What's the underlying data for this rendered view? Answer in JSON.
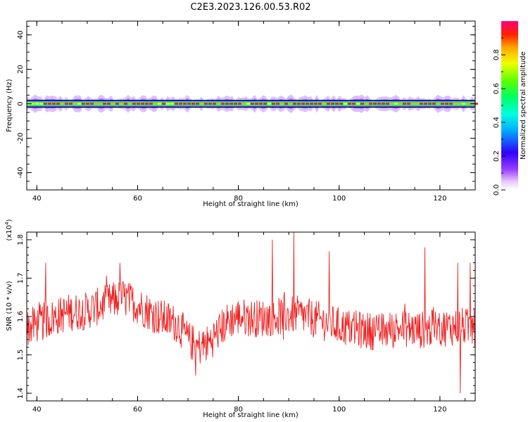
{
  "title": "C2E3.2023.126.00.53.R02",
  "chart_data": [
    {
      "type": "heatmap",
      "title": "",
      "xlabel": "Height of straight line (km)",
      "ylabel": "Frequency (Hz)",
      "xlim": [
        38,
        127
      ],
      "ylim": [
        -50,
        48
      ],
      "xticks": [
        "40",
        "60",
        "80",
        "100",
        "120"
      ],
      "xtick_values": [
        40,
        60,
        80,
        100,
        120
      ],
      "yticks": [
        "40",
        "20",
        "0",
        "-20",
        "-40"
      ],
      "ytick_values": [
        40,
        20,
        0,
        -20,
        -40
      ],
      "colorbar": {
        "label": "Normalized spectral amplitude",
        "range": [
          0,
          1
        ],
        "ticks": [
          "0.0",
          "0.2",
          "0.4",
          "0.6",
          "0.8"
        ],
        "tick_values": [
          0.0,
          0.2,
          0.4,
          0.6,
          0.8
        ],
        "colormap": "rainbow (white-violet-blue-cyan-green-yellow-red-magenta)"
      },
      "band": {
        "center_hz": 0,
        "core_halfwidth_hz": 1.2,
        "halo_halfwidth_hz": 4,
        "peak_amplitude": 0.85
      }
    },
    {
      "type": "line",
      "title": "",
      "xlabel": "Height of straight line (km)",
      "ylabel": "SNR (10 * v/v)",
      "scale_label": "(x10",
      "scale_exponent": "4",
      "scale_suffix": ")",
      "xlim": [
        38,
        127
      ],
      "ylim": [
        1.38,
        1.82
      ],
      "xticks": [
        "40",
        "60",
        "80",
        "100",
        "120"
      ],
      "xtick_values": [
        40,
        60,
        80,
        100,
        120
      ],
      "yticks": [
        "1.8",
        "1.7",
        "1.6",
        "1.5",
        "1.4"
      ],
      "ytick_values": [
        1.8,
        1.7,
        1.6,
        1.5,
        1.4
      ],
      "line_color": "#ee2222",
      "trend_x": [
        38,
        42,
        46,
        50,
        54,
        57,
        60,
        64,
        68,
        70,
        72,
        74,
        76,
        78,
        80,
        84,
        88,
        92,
        96,
        100,
        104,
        108,
        112,
        116,
        120,
        124,
        127
      ],
      "trend_y": [
        1.57,
        1.59,
        1.61,
        1.615,
        1.635,
        1.65,
        1.63,
        1.6,
        1.58,
        1.54,
        1.52,
        1.53,
        1.56,
        1.59,
        1.6,
        1.595,
        1.6,
        1.605,
        1.59,
        1.575,
        1.565,
        1.56,
        1.57,
        1.565,
        1.57,
        1.575,
        1.57
      ],
      "noise_amplitude": 0.05,
      "spikes": [
        {
          "x": 41.8,
          "y": 1.74
        },
        {
          "x": 56.5,
          "y": 1.74
        },
        {
          "x": 86.8,
          "y": 1.8
        },
        {
          "x": 91.0,
          "y": 1.82
        },
        {
          "x": 98.0,
          "y": 1.77
        },
        {
          "x": 117.0,
          "y": 1.78
        },
        {
          "x": 124.0,
          "y": 1.4
        },
        {
          "x": 123.5,
          "y": 1.74
        },
        {
          "x": 126.0,
          "y": 1.74
        }
      ]
    }
  ],
  "colors": {
    "axes": "#000000",
    "line": "#ee2222",
    "background": "#ffffff"
  }
}
